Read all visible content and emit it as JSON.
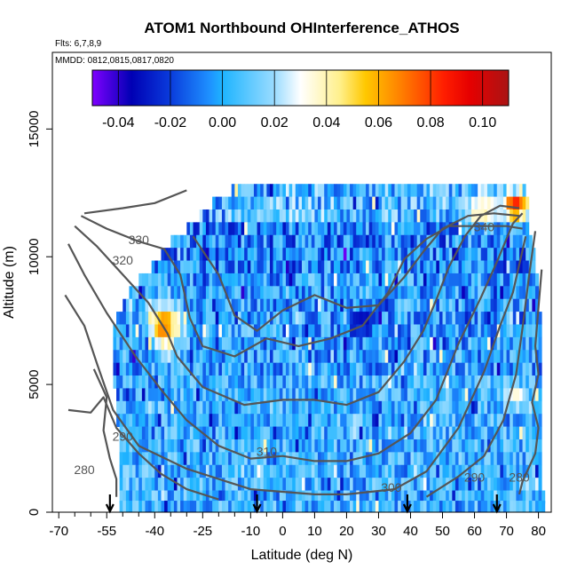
{
  "chart_data": {
    "type": "heatmap",
    "title": "ATOM1 Northbound OHInterference_ATHOS",
    "subtitle_flights": "Flts: 6,7,8,9",
    "subtitle_dates": "MMDD: 0812,0815,0817,0820",
    "xlabel": "Latitude (deg N)",
    "ylabel": "Altitude (m)",
    "xlim": [
      -72,
      84
    ],
    "ylim": [
      0,
      18000
    ],
    "x_ticks": [
      -70,
      -55,
      -40,
      -25,
      -10,
      0,
      10,
      20,
      30,
      40,
      50,
      60,
      70,
      80
    ],
    "x_tick_labels": [
      "-70",
      "-55",
      "-40",
      "-25",
      "-10",
      "0",
      "10",
      "20",
      "30",
      "40",
      "50",
      "60",
      "70",
      "80"
    ],
    "x_minor_ticks": [
      -65,
      -60,
      -50,
      -45,
      -35,
      -30,
      -20,
      -15,
      -5
    ],
    "y_ticks": [
      0,
      5000,
      10000,
      15000
    ],
    "y_tick_labels": [
      "0",
      "5000",
      "10000",
      "15000"
    ],
    "colorbar": {
      "range": [
        -0.05,
        0.11
      ],
      "ticks": [
        -0.04,
        -0.02,
        0.0,
        0.02,
        0.04,
        0.06,
        0.08,
        0.1
      ],
      "tick_labels": [
        "-0.04",
        "-0.02",
        "0.00",
        "0.02",
        "0.04",
        "0.06",
        "0.08",
        "0.10"
      ],
      "colors": [
        "#7f00ff",
        "#0000b4",
        "#0a3cdc",
        "#1e90ff",
        "#1eb4ff",
        "#9bdcff",
        "#ffffff",
        "#fff08c",
        "#ffc800",
        "#ff7800",
        "#ff1e00",
        "#e60000",
        "#aa1414"
      ],
      "color_stops": [
        -0.05,
        -0.035,
        -0.02,
        -0.005,
        0.0,
        0.02,
        0.03,
        0.045,
        0.055,
        0.07,
        0.085,
        0.095,
        0.11
      ]
    },
    "flight_markers_lat": [
      -54,
      -8,
      39,
      67
    ],
    "rows": [
      {
        "alt": 12600,
        "lat_min": -16,
        "lat_max": 76,
        "kind": "top"
      },
      {
        "alt": 12100,
        "lat_min": -22,
        "lat_max": 77,
        "kind": "top"
      },
      {
        "alt": 11600,
        "lat_min": -26,
        "lat_max": 77,
        "kind": "top"
      },
      {
        "alt": 11100,
        "lat_min": -30,
        "lat_max": 77,
        "kind": "upper"
      },
      {
        "alt": 10600,
        "lat_min": -35,
        "lat_max": 78,
        "kind": "upper"
      },
      {
        "alt": 10100,
        "lat_min": -38,
        "lat_max": 79,
        "kind": "upper"
      },
      {
        "alt": 9600,
        "lat_min": -41,
        "lat_max": 79,
        "kind": "upper"
      },
      {
        "alt": 9100,
        "lat_min": -45,
        "lat_max": 80,
        "kind": "mid"
      },
      {
        "alt": 8600,
        "lat_min": -48,
        "lat_max": 80,
        "kind": "mid"
      },
      {
        "alt": 8100,
        "lat_min": -50,
        "lat_max": 80,
        "kind": "mid"
      },
      {
        "alt": 7600,
        "lat_min": -52,
        "lat_max": 81,
        "kind": "mid"
      },
      {
        "alt": 7100,
        "lat_min": -53,
        "lat_max": 81,
        "kind": "mid"
      },
      {
        "alt": 6600,
        "lat_min": -53,
        "lat_max": 81,
        "kind": "mid"
      },
      {
        "alt": 6100,
        "lat_min": -53,
        "lat_max": 81,
        "kind": "mid"
      },
      {
        "alt": 5600,
        "lat_min": -53,
        "lat_max": 81,
        "kind": "mid"
      },
      {
        "alt": 5100,
        "lat_min": -53,
        "lat_max": 81,
        "kind": "low"
      },
      {
        "alt": 4600,
        "lat_min": -52,
        "lat_max": 81,
        "kind": "low"
      },
      {
        "alt": 4100,
        "lat_min": -52,
        "lat_max": 81,
        "kind": "low"
      },
      {
        "alt": 3600,
        "lat_min": -52,
        "lat_max": 81,
        "kind": "low"
      },
      {
        "alt": 3100,
        "lat_min": -51,
        "lat_max": 81,
        "kind": "low"
      },
      {
        "alt": 2600,
        "lat_min": -51,
        "lat_max": 81,
        "kind": "low"
      },
      {
        "alt": 2100,
        "lat_min": -51,
        "lat_max": 81,
        "kind": "low"
      },
      {
        "alt": 1600,
        "lat_min": -51,
        "lat_max": 81,
        "kind": "low"
      },
      {
        "alt": 1100,
        "lat_min": -51,
        "lat_max": 81,
        "kind": "low"
      },
      {
        "alt": 600,
        "lat_min": -51,
        "lat_max": 82,
        "kind": "low"
      },
      {
        "alt": 200,
        "lat_min": -51,
        "lat_max": 82,
        "kind": "low"
      }
    ],
    "hotspots": [
      {
        "lat": -37,
        "alt": 7300,
        "value": 0.07,
        "rx": 5,
        "ry": 900
      },
      {
        "lat": 73,
        "alt": 12000,
        "value": 0.09,
        "rx": 4,
        "ry": 500
      },
      {
        "lat": 62,
        "alt": 11800,
        "value": 0.04,
        "rx": 6,
        "ry": 600
      },
      {
        "lat": 73,
        "alt": 4600,
        "value": 0.035,
        "rx": 4,
        "ry": 400
      },
      {
        "lat": 24,
        "alt": 7400,
        "value": -0.035,
        "rx": 4,
        "ry": 500
      }
    ],
    "contours": [
      {
        "level": "280",
        "points": [
          [
            -59,
            5600
          ],
          [
            -55,
            4500
          ],
          [
            -56,
            3200
          ],
          [
            -54,
            2100
          ],
          [
            -52,
            1300
          ],
          [
            -52,
            600
          ]
        ]
      },
      {
        "level": "280",
        "points": [
          [
            74,
            700
          ],
          [
            75,
            1200
          ],
          [
            79,
            2300
          ],
          [
            80,
            3300
          ],
          [
            78,
            4300
          ],
          [
            80,
            5400
          ],
          [
            79,
            6500
          ],
          [
            80,
            8000
          ],
          [
            81,
            9500
          ]
        ]
      },
      {
        "level": "290",
        "points": [
          [
            -67,
            4000
          ],
          [
            -60,
            3900
          ],
          [
            -56,
            4500
          ],
          [
            -52,
            3300
          ],
          [
            -45,
            2300
          ],
          [
            -38,
            1500
          ],
          [
            -30,
            900
          ],
          [
            -20,
            500
          ]
        ]
      },
      {
        "level": "290",
        "points": [
          [
            45,
            600
          ],
          [
            55,
            1400
          ],
          [
            63,
            2200
          ],
          [
            69,
            3600
          ],
          [
            73,
            5400
          ],
          [
            75,
            7200
          ],
          [
            77,
            9200
          ],
          [
            79,
            11000
          ]
        ]
      },
      {
        "level": "300",
        "points": [
          [
            -68,
            8500
          ],
          [
            -62,
            7300
          ],
          [
            -58,
            5800
          ],
          [
            -53,
            4000
          ],
          [
            -45,
            2600
          ],
          [
            -30,
            1700
          ],
          [
            -10,
            900
          ],
          [
            10,
            700
          ],
          [
            20,
            700
          ],
          [
            35,
            900
          ],
          [
            45,
            1600
          ],
          [
            55,
            3300
          ],
          [
            63,
            5500
          ],
          [
            68,
            7300
          ],
          [
            72,
            8600
          ],
          [
            76,
            10800
          ]
        ]
      },
      {
        "level": "310",
        "points": [
          [
            -67,
            10500
          ],
          [
            -62,
            9300
          ],
          [
            -55,
            7800
          ],
          [
            -46,
            6100
          ],
          [
            -38,
            4800
          ],
          [
            -30,
            3600
          ],
          [
            -20,
            2600
          ],
          [
            -10,
            2100
          ],
          [
            0,
            2200
          ],
          [
            10,
            2000
          ],
          [
            20,
            2000
          ],
          [
            30,
            2300
          ],
          [
            40,
            3100
          ],
          [
            48,
            4400
          ],
          [
            55,
            6600
          ],
          [
            62,
            8400
          ],
          [
            67,
            9800
          ],
          [
            72,
            11300
          ],
          [
            75,
            11700
          ]
        ]
      },
      {
        "level": "320",
        "points": [
          [
            -65,
            11200
          ],
          [
            -58,
            10400
          ],
          [
            -50,
            9300
          ],
          [
            -42,
            8200
          ],
          [
            -36,
            7000
          ],
          [
            -33,
            6100
          ],
          [
            -25,
            4900
          ],
          [
            -12,
            4200
          ],
          [
            0,
            4400
          ],
          [
            10,
            4400
          ],
          [
            20,
            4200
          ],
          [
            30,
            4700
          ],
          [
            38,
            5900
          ],
          [
            44,
            7100
          ],
          [
            48,
            8300
          ],
          [
            52,
            9600
          ],
          [
            57,
            10800
          ],
          [
            62,
            11600
          ],
          [
            68,
            12000
          ],
          [
            74,
            11900
          ]
        ]
      },
      {
        "level": "330",
        "points": [
          [
            -63,
            11600
          ],
          [
            -55,
            11100
          ],
          [
            -45,
            10600
          ],
          [
            -37,
            10300
          ],
          [
            -32,
            9300
          ],
          [
            -29,
            7600
          ],
          [
            -25,
            6500
          ],
          [
            -15,
            6100
          ],
          [
            -5,
            6800
          ],
          [
            5,
            6500
          ],
          [
            15,
            6800
          ],
          [
            25,
            7300
          ],
          [
            33,
            8600
          ],
          [
            38,
            9900
          ],
          [
            45,
            10700
          ],
          [
            52,
            11200
          ],
          [
            62,
            11200
          ],
          [
            70,
            11200
          ],
          [
            75,
            11100
          ]
        ]
      },
      {
        "level": "340",
        "points": [
          [
            -62,
            11700
          ],
          [
            -50,
            11900
          ],
          [
            -40,
            12100
          ],
          [
            -30,
            12600
          ]
        ]
      },
      {
        "level": "340",
        "points": [
          [
            -28,
            10800
          ],
          [
            -20,
            9300
          ],
          [
            -15,
            7700
          ],
          [
            -8,
            7100
          ],
          [
            0,
            7900
          ],
          [
            10,
            8500
          ],
          [
            20,
            8000
          ],
          [
            30,
            8100
          ],
          [
            38,
            9200
          ],
          [
            44,
            10200
          ],
          [
            50,
            11100
          ],
          [
            58,
            11600
          ],
          [
            66,
            11700
          ],
          [
            74,
            11600
          ]
        ]
      }
    ],
    "contour_labels": [
      {
        "text": "330",
        "lat": -45,
        "alt": 10500
      },
      {
        "text": "320",
        "lat": -50,
        "alt": 9700
      },
      {
        "text": "340",
        "lat": 63,
        "alt": 11000
      },
      {
        "text": "290",
        "lat": -50,
        "alt": 2800
      },
      {
        "text": "280",
        "lat": -62,
        "alt": 1500
      },
      {
        "text": "310",
        "lat": -5,
        "alt": 2200
      },
      {
        "text": "300",
        "lat": 34,
        "alt": 800
      },
      {
        "text": "290",
        "lat": 60,
        "alt": 1200
      },
      {
        "text": "280",
        "lat": 74,
        "alt": 1200
      }
    ]
  }
}
